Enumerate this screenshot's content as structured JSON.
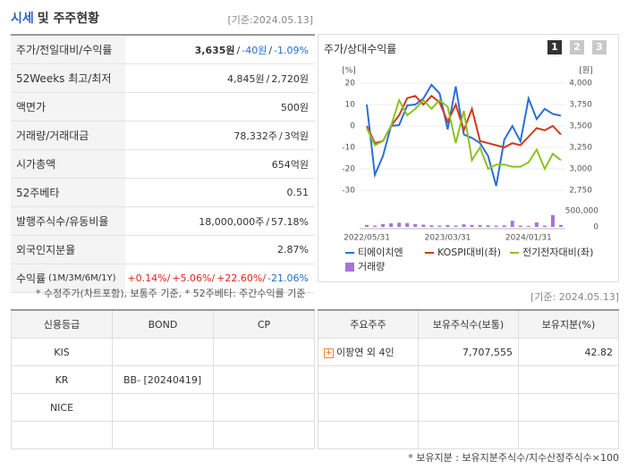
{
  "header": {
    "title": [
      "시세",
      "및 주주현황"
    ],
    "date": "[기준:2024.05.13]"
  },
  "summary": {
    "rows": [
      {
        "label": "주가/전일대비/수익률",
        "value": [
          "3,635원",
          "/",
          "-40원",
          "/",
          "-1.09%"
        ]
      },
      {
        "label": "52Weeks 최고/최저",
        "value": [
          "4,845원",
          "/",
          "2,720원"
        ]
      },
      {
        "label": "액면가",
        "value": [
          "500원"
        ]
      },
      {
        "label": "거래량/거래대금",
        "value": [
          "78,332주",
          "/",
          "3억원"
        ]
      },
      {
        "label": "시가총액",
        "value": [
          "654억원"
        ]
      },
      {
        "label": "52주베타",
        "value": [
          "0.51"
        ]
      },
      {
        "label": "발행주식수/유동비율",
        "value": [
          "18,000,000주",
          "/",
          "57.18%"
        ]
      },
      {
        "label": "외국인지분율",
        "value": [
          "2.87%"
        ]
      },
      {
        "label": "수익률",
        "sub": "(1M/3M/6M/1Y)",
        "value": [
          "+0.14%/",
          "+5.06%/",
          "+22.60%/",
          "-21.06%"
        ]
      }
    ]
  },
  "note": "* 수정주가(차트포함), 보통주 기준, * 52주베타: 주간수익률 기준",
  "chart_panel": {
    "title": "주가/상대수익률",
    "tabs": [
      "1",
      "2",
      "3"
    ]
  },
  "chart_data": {
    "type": "line",
    "categories": [
      "2022/05/31",
      null,
      null,
      null,
      null,
      null,
      null,
      null,
      null,
      null,
      "2023/03/31",
      null,
      null,
      null,
      null,
      null,
      null,
      null,
      null,
      null,
      "2024/01/31",
      null,
      null,
      null,
      null
    ],
    "ylabel": "[%]",
    "y2label": "[원]",
    "ylim": [
      -30,
      20
    ],
    "yticks": [
      20,
      10,
      0,
      -10,
      -20,
      -30
    ],
    "y2lim": [
      2750,
      4000
    ],
    "y2ticks": [
      {
        "value": 4000,
        "label": "4,000"
      },
      {
        "value": 3750,
        "label": "3,750"
      },
      {
        "value": 3500,
        "label": "3,500"
      },
      {
        "value": 3250,
        "label": "3,250"
      },
      {
        "value": 3000,
        "label": "3,000"
      },
      {
        "value": 2750,
        "label": "2,750"
      }
    ],
    "vlim": [
      0,
      500000
    ],
    "vticks": [
      {
        "value": 500000,
        "label": "500,000"
      },
      0
    ],
    "grid": true,
    "series": [
      {
        "name": "티에이치엔",
        "color": "#2a6fdb",
        "axis": "y2",
        "values": [
          3750,
          2930,
          3150,
          3500,
          3510,
          3740,
          3750,
          3820,
          3980,
          3880,
          3460,
          3960,
          3400,
          3360,
          3300,
          3150,
          2800,
          3340,
          3500,
          3320,
          3820,
          3580,
          3700,
          3640,
          3620
        ]
      },
      {
        "name": "KOSPI대비(좌)",
        "color": "#d03a1a",
        "values": [
          0,
          -8,
          -7,
          0,
          5,
          13,
          14,
          10,
          14,
          11,
          2,
          10,
          -2,
          8,
          -7,
          -8,
          -9,
          -10,
          -8,
          -9,
          -5,
          -1,
          -2,
          0,
          -4
        ]
      },
      {
        "name": "전기전자대비(좌)",
        "color": "#8dc21f",
        "values": [
          -1,
          -9,
          -7,
          0,
          12,
          5,
          8,
          12,
          8,
          12,
          9,
          -8,
          7,
          -16,
          -10,
          -20,
          -18,
          -18,
          -19,
          -19,
          -17,
          -11,
          -20,
          -13,
          -16
        ]
      },
      {
        "name": "거래량",
        "color": "#a774d8",
        "type": "bar",
        "axis": "v",
        "values": [
          60000,
          40000,
          90000,
          110000,
          130000,
          120000,
          90000,
          70000,
          50000,
          40000,
          60000,
          40000,
          80000,
          60000,
          60000,
          50000,
          40000,
          50000,
          190000,
          40000,
          30000,
          140000,
          40000,
          370000,
          60000
        ]
      }
    ]
  },
  "date2": "[기준: 2024.05.13]",
  "credit_table": {
    "columns": [
      "신용등급",
      "BOND",
      "CP"
    ],
    "rows": [
      [
        "KIS",
        "",
        ""
      ],
      [
        "KR",
        "BB-  [20240419]",
        ""
      ],
      [
        "NICE",
        "",
        ""
      ],
      [
        "",
        "",
        ""
      ]
    ]
  },
  "holder_table": {
    "columns": [
      "주요주주",
      "보유주식수(보통)",
      "보유지분(%)"
    ],
    "rows": [
      [
        "이팡연 외 4인",
        "7,707,555",
        "42.82"
      ],
      [
        "",
        "",
        ""
      ],
      [
        "",
        "",
        ""
      ],
      [
        "",
        "",
        ""
      ]
    ]
  },
  "footnote": "* 보유지분 : 보유지분주식수/지수산정주식수×100"
}
